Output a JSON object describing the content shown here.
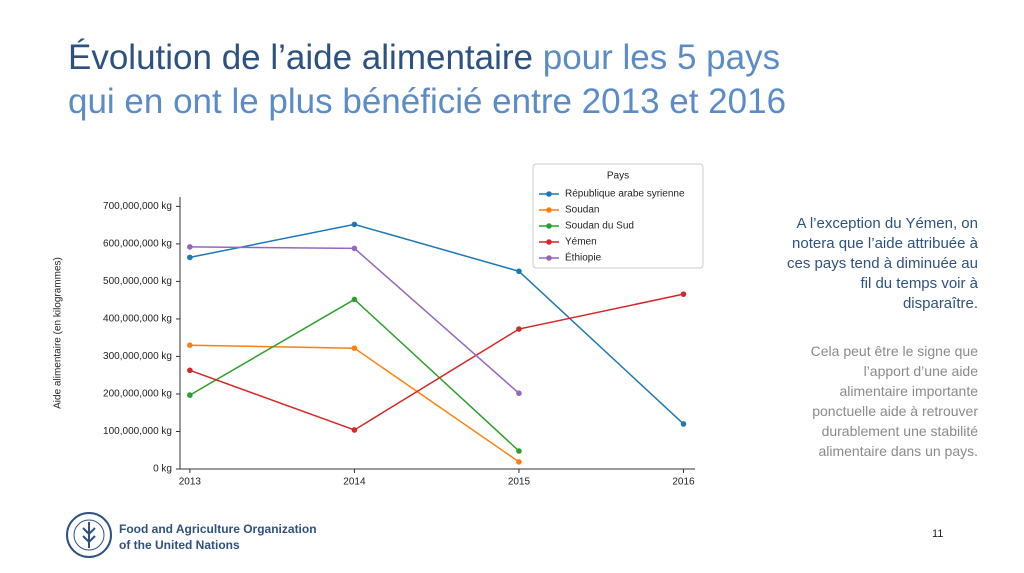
{
  "slide": {
    "title": {
      "emphasis": "Évolution de l’aide alimentaire",
      "rest": [
        "pour les 5 pays",
        "qui en ont le plus bénéficié entre 2013 et 2016"
      ]
    },
    "highlight": [
      "A l’exception du Yémen, on",
      "notera que l’aide attribuée à",
      "ces pays tend à diminuée au",
      "fil du temps voir à",
      "disparaître."
    ],
    "note": [
      "Cela peut être le signe que",
      "l’apport d’une aide",
      "alimentaire importante",
      "ponctuelle aide à retrouver",
      "durablement une stabilité",
      "alimentaire dans un pays."
    ],
    "organization": [
      "Food and Agriculture Organization",
      "of the United Nations"
    ],
    "page_number": "11"
  },
  "chart_data": {
    "type": "line",
    "y_label": "Aide alimentaire (en kilogrammes)",
    "legend_title": "Pays",
    "legend": "upper right",
    "x": [
      2013,
      2014,
      2015,
      2016
    ],
    "xlim": [
      2012.94,
      2016.07
    ],
    "xticks": [
      2013,
      2014,
      2015,
      2016
    ],
    "ylim": [
      0,
      725000000
    ],
    "yticks": [
      {
        "value": 0,
        "label": "0 kg"
      },
      {
        "value": 100000000,
        "label": "100,000,000 kg"
      },
      {
        "value": 200000000,
        "label": "200,000,000 kg"
      },
      {
        "value": 300000000,
        "label": "300,000,000 kg"
      },
      {
        "value": 400000000,
        "label": "400,000,000 kg"
      },
      {
        "value": 500000000,
        "label": "500,000,000 kg"
      },
      {
        "value": 600000000,
        "label": "600,000,000 kg"
      },
      {
        "value": 700000000,
        "label": "700,000,000 kg"
      }
    ],
    "grid": false,
    "series": [
      {
        "name": "République arabe syrienne",
        "color": "#1f77b4",
        "values": [
          564000000,
          652000000,
          527000000,
          120000000
        ]
      },
      {
        "name": "Soudan",
        "color": "#ff7f0e",
        "values": [
          330000000,
          322000000,
          19000000,
          null
        ]
      },
      {
        "name": "Soudan du Sud",
        "color": "#2ca02c",
        "values": [
          197000000,
          452000000,
          48000000,
          null
        ]
      },
      {
        "name": "Yémen",
        "color": "#d62728",
        "values": [
          263000000,
          104000000,
          373000000,
          466000000
        ]
      },
      {
        "name": "Éthiopie",
        "color": "#9467bd",
        "values": [
          592000000,
          588000000,
          202000000,
          null
        ]
      }
    ]
  }
}
